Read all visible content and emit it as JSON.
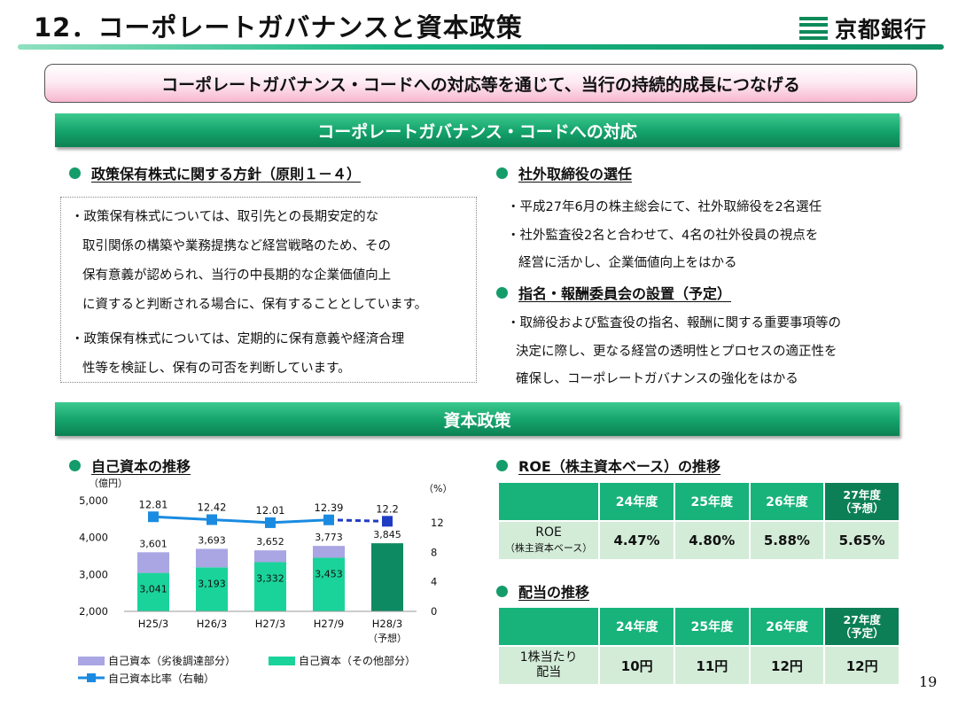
{
  "header": {
    "title": "12．コーポレートガバナンスと資本政策",
    "logo_text": "京都銀行",
    "logo_icon": "bank-logo-icon"
  },
  "subtitle": "コーポレートガバナンス・コードへの対応等を通じて、当行の持続的成長につなげる",
  "section1": {
    "title": "コーポレートガバナンス・コードへの対応",
    "left": {
      "heading": "政策保有株式に関する方針（原則１－４）",
      "lines": [
        "・政策保有株式については、取引先との長期安定的な",
        "取引関係の構築や業務提携など経営戦略のため、その",
        "保有意義が認められ、当行の中長期的な企業価値向上",
        "に資すると判断される場合に、保有することとしています。",
        "・政策保有株式については、定期的に保有意義や経済合理",
        "性等を検証し、保有の可否を判断しています。"
      ]
    },
    "right1": {
      "heading": "社外取締役の選任",
      "lines": [
        "・平成27年6月の株主総会にて、社外取締役を2名選任",
        "・社外監査役2名と合わせて、4名の社外役員の視点を",
        "経営に活かし、企業価値向上をはかる"
      ]
    },
    "right2": {
      "heading": "指名・報酬委員会の設置（予定）",
      "lines": [
        "・取締役および監査役の指名、報酬に関する重要事項等の",
        "決定に際し、更なる経営の透明性とプロセスの適正性を",
        "確保し、コーポレートガバナンスの強化をはかる"
      ]
    }
  },
  "section2": {
    "title": "資本政策",
    "chart_heading": "自己資本の推移",
    "roe_heading": "ROE（株主資本ベース）の推移",
    "dividend_heading": "配当の推移"
  },
  "chart_data": {
    "type": "bar",
    "stacked": true,
    "title": "自己資本の推移",
    "ylabel_left": "（億円）",
    "ylabel_right": "（%）",
    "categories": [
      "H25/3",
      "H26/3",
      "H27/3",
      "H27/9",
      "H28/3"
    ],
    "category_notes": [
      "",
      "",
      "",
      "",
      "（予想）"
    ],
    "ylim_left": [
      2000,
      5000
    ],
    "yticks_left": [
      "2,000",
      "3,000",
      "4,000",
      "5,000"
    ],
    "ylim_right": [
      0,
      15
    ],
    "yticks_right": [
      "0",
      "4",
      "8",
      "12"
    ],
    "series": [
      {
        "name": "自己資本（その他部分）",
        "color": "#1ad39a",
        "values": [
          3041,
          3193,
          3332,
          3453,
          null
        ],
        "labels": [
          "3,041",
          "3,193",
          "3,332",
          "3,453",
          ""
        ]
      },
      {
        "name": "自己資本（劣後調達部分）",
        "color": "#a9a6e3",
        "values": [
          560,
          500,
          320,
          320,
          null
        ]
      },
      {
        "name": "自己資本（予想）",
        "color": "#0e8a62",
        "values": [
          null,
          null,
          null,
          null,
          3845
        ]
      }
    ],
    "totals": [
      3601,
      3693,
      3652,
      3773,
      3845
    ],
    "total_labels": [
      "3,601",
      "3,693",
      "3,652",
      "3,773",
      "3,845"
    ],
    "line": {
      "name": "自己資本比率（右軸）",
      "color": "#1a8be0",
      "values": [
        12.81,
        12.42,
        12.01,
        12.39,
        12.2
      ],
      "labels": [
        "12.81",
        "12.42",
        "12.01",
        "12.39",
        "12.2"
      ],
      "last_point_color": "#1f3cc4"
    },
    "legend": [
      {
        "label": "自己資本（劣後調達部分）",
        "color": "#a9a6e3",
        "kind": "box"
      },
      {
        "label": "自己資本（その他部分）",
        "color": "#1ad39a",
        "kind": "box"
      },
      {
        "label": "自己資本比率（右軸）",
        "color": "#1a8be0",
        "kind": "line"
      }
    ]
  },
  "roe_table": {
    "headers": [
      "24年度",
      "25年度",
      "26年度"
    ],
    "last_header": [
      "27年度",
      "（予想）"
    ],
    "row_label": "ROE",
    "row_sublabel": "（株主資本ベース）",
    "values": [
      "4.47%",
      "4.80%",
      "5.88%",
      "5.65%"
    ]
  },
  "dividend_table": {
    "headers": [
      "24年度",
      "25年度",
      "26年度"
    ],
    "last_header": [
      "27年度",
      "（予定）"
    ],
    "row_label": [
      "1株当たり",
      "配当"
    ],
    "values": [
      "10円",
      "11円",
      "12円",
      "12円"
    ]
  },
  "page_number": "19"
}
